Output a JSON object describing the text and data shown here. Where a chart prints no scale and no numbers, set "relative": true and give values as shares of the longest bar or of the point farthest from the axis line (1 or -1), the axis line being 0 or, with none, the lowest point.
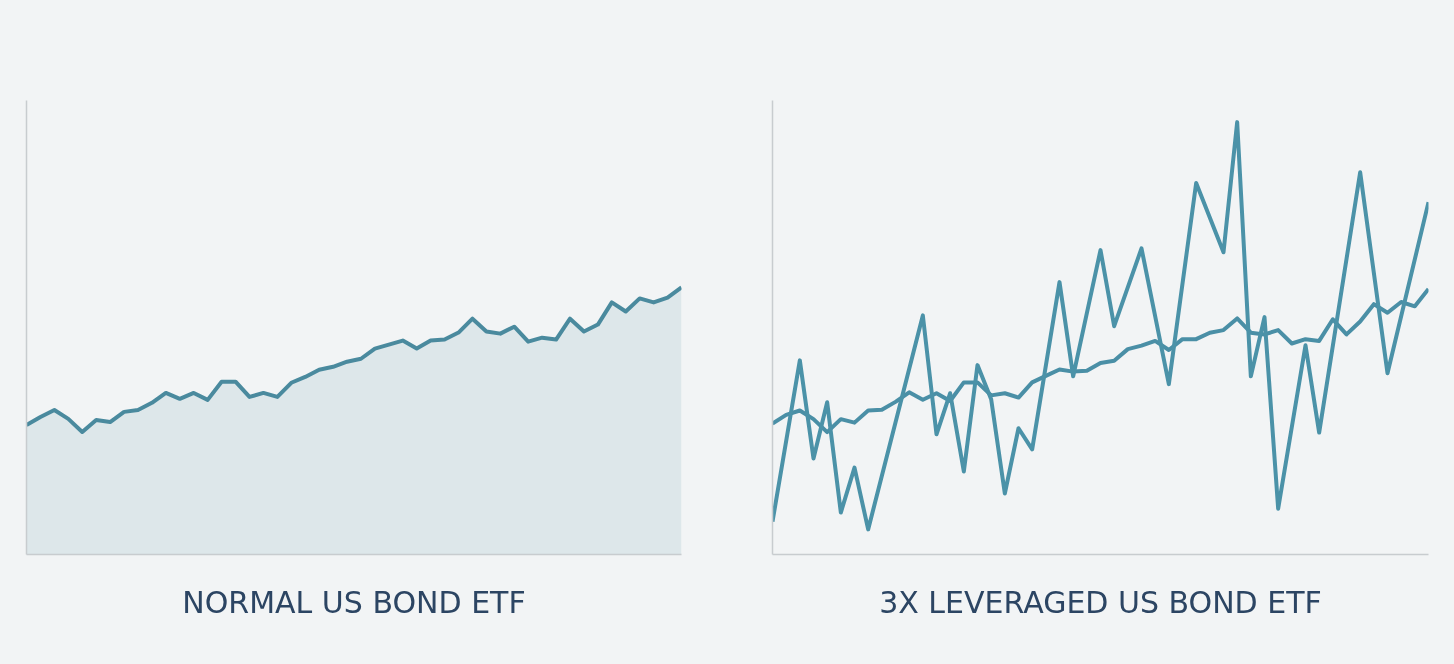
{
  "chart_data": [
    {
      "type": "area",
      "relative": true,
      "xlabel": "NORMAL US BOND ETF",
      "categories": [
        null,
        null,
        null,
        null,
        null,
        null,
        null,
        null,
        null,
        null,
        null,
        null,
        null,
        null,
        null,
        null,
        null,
        null,
        null,
        null,
        null,
        null,
        null,
        null,
        null,
        null,
        null,
        null,
        null,
        null,
        null,
        null,
        null,
        null,
        null,
        null,
        null,
        null,
        null,
        null,
        null,
        null,
        null,
        null,
        null,
        null,
        null,
        null
      ],
      "series": [
        {
          "color": "#4a8a9e",
          "values": [
            0.485,
            0.515,
            0.541,
            0.508,
            0.459,
            0.504,
            0.496,
            0.534,
            0.541,
            0.568,
            0.605,
            0.583,
            0.605,
            0.579,
            0.647,
            0.647,
            0.59,
            0.605,
            0.59,
            0.643,
            0.665,
            0.692,
            0.703,
            0.722,
            0.733,
            0.771,
            0.786,
            0.801,
            0.771,
            0.801,
            0.805,
            0.831,
            0.883,
            0.835,
            0.827,
            0.853,
            0.797,
            0.812,
            0.805,
            0.883,
            0.835,
            0.861,
            0.944,
            0.91,
            0.959,
            0.944,
            0.962,
            1
          ]
        }
      ],
      "tick_labels": false
    },
    {
      "type": "line",
      "relative": true,
      "xlabel": "3X LEVERAGED US BOND ETF",
      "categories": [
        null,
        null,
        null,
        null,
        null,
        null,
        null,
        null,
        null,
        null,
        null,
        null,
        null,
        null,
        null,
        null,
        null,
        null,
        null,
        null,
        null,
        null,
        null,
        null,
        null,
        null,
        null,
        null,
        null,
        null,
        null,
        null,
        null,
        null,
        null,
        null,
        null,
        null,
        null,
        null,
        null,
        null,
        null,
        null,
        null,
        null,
        null,
        null,
        null
      ],
      "series": [
        {
          "color": "#4a8fa6",
          "values": [
            0.303,
            0.323,
            0.333,
            0.313,
            0.283,
            0.313,
            0.305,
            0.333,
            0.335,
            0.353,
            0.375,
            0.358,
            0.373,
            0.355,
            0.398,
            0.398,
            0.368,
            0.373,
            0.363,
            0.398,
            0.413,
            0.428,
            0.423,
            0.425,
            0.443,
            0.448,
            0.475,
            0.483,
            0.494,
            0.473,
            0.498,
            0.498,
            0.513,
            0.519,
            0.546,
            0.513,
            0.509,
            0.519,
            0.488,
            0.498,
            0.494,
            0.544,
            0.509,
            0.539,
            0.579,
            0.559,
            0.584,
            0.574,
            0.614
          ]
        },
        {
          "color": "#4b92a8",
          "values": [
            0.076,
            null,
            0.449,
            0.222,
            0.352,
            0.097,
            0.201,
            0.058,
            null,
            null,
            null,
            0.553,
            0.278,
            0.373,
            0.192,
            0.438,
            0.359,
            0.141,
            0.292,
            0.243,
            null,
            0.63,
            0.412,
            null,
            0.704,
            0.528,
            null,
            0.708,
            null,
            0.394,
            null,
            0.859,
            null,
            0.699,
            1,
            0.412,
            0.549,
            0.106,
            null,
            0.484,
            0.282,
            null,
            null,
            0.884,
            null,
            0.419,
            null,
            null,
            0.815
          ]
        }
      ],
      "tick_labels": false
    }
  ]
}
